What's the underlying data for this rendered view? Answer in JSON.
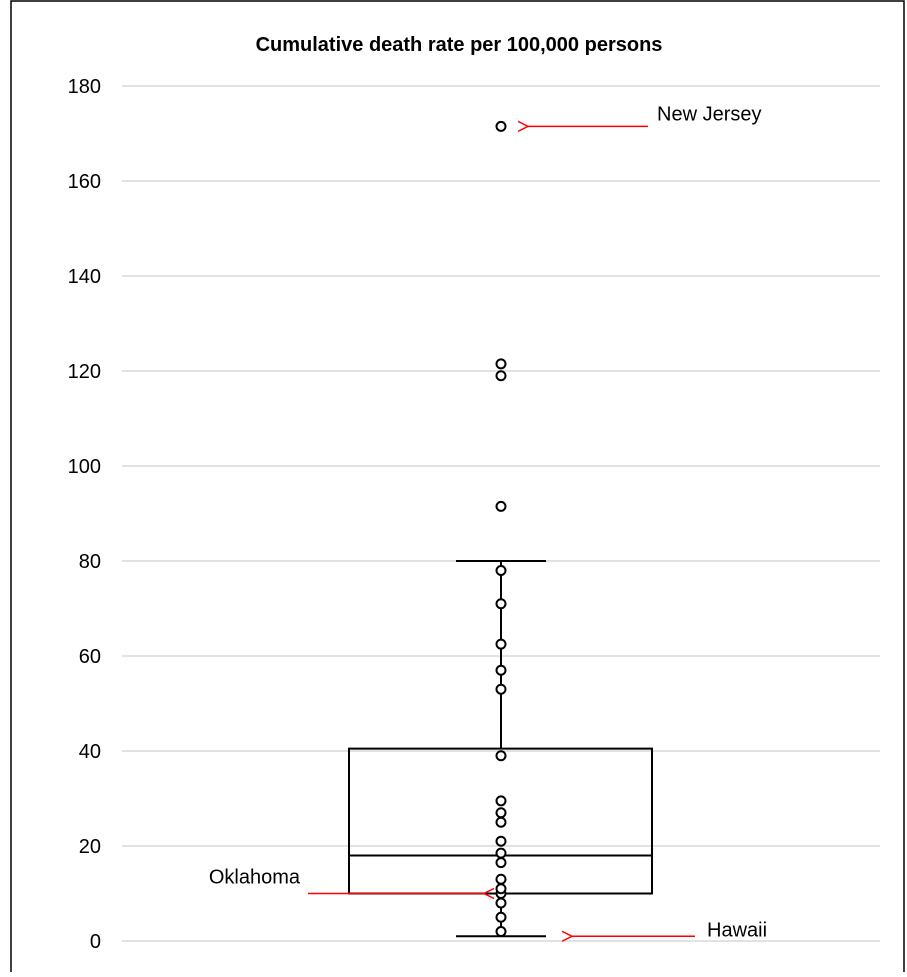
{
  "chart_data": {
    "type": "box",
    "title": "Cumulative death rate per 100,000 persons",
    "ylim": [
      0,
      180
    ],
    "yticks": [
      0,
      20,
      40,
      60,
      80,
      100,
      120,
      140,
      160,
      180
    ],
    "grid": true,
    "box": {
      "whisker_low": 1,
      "q1": 10,
      "median": 18,
      "q3": 40.5,
      "whisker_high": 80
    },
    "points": [
      2,
      5,
      8,
      10,
      11,
      13,
      16.5,
      18.5,
      21,
      25,
      27,
      29.5,
      39,
      53,
      57,
      62.5,
      71,
      78,
      91.5,
      119,
      121.5,
      171.5
    ],
    "annotations": [
      {
        "label": "New Jersey",
        "value": 171.5
      },
      {
        "label": "Oklahoma",
        "value": 10
      },
      {
        "label": "Hawaii",
        "value": 1
      }
    ],
    "colors": {
      "grid": "#d9d9d9",
      "arrow": "#ff0000",
      "frame": "#000000"
    }
  }
}
